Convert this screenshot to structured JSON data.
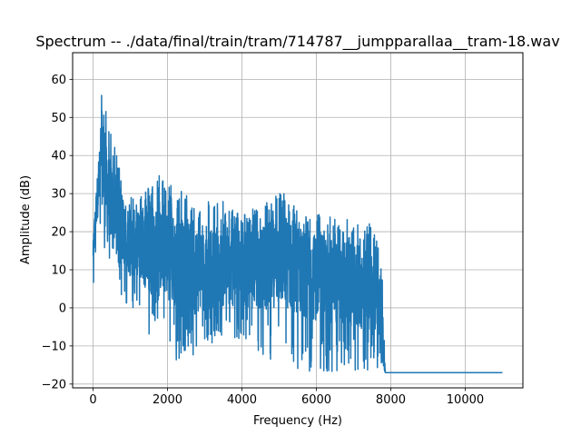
{
  "chart_data": {
    "type": "line",
    "title": "Spectrum -- ./data/final/train/tram/714787__jumpparallaa__tram-18.wav",
    "xlabel": "Frequency (Hz)",
    "ylabel": "Amplitude (dB)",
    "xlim": [
      -550,
      11550
    ],
    "ylim": [
      -21,
      67
    ],
    "xticks": [
      0,
      2000,
      4000,
      6000,
      8000,
      10000
    ],
    "xtick_labels": [
      "0",
      "2000",
      "4000",
      "6000",
      "8000",
      "10000"
    ],
    "yticks": [
      -20,
      -10,
      0,
      10,
      20,
      30,
      40,
      50,
      60
    ],
    "ytick_labels": [
      "−20",
      "−10",
      "0",
      "10",
      "20",
      "30",
      "40",
      "50",
      "60"
    ],
    "grid": true,
    "line_color": "#1f77b4",
    "series": [
      {
        "envelope": {
          "x": [
            0,
            100,
            200,
            230,
            300,
            400,
            500,
            600,
            700,
            800,
            1000,
            1200,
            1500,
            1800,
            2000,
            2300,
            2600,
            3000,
            3500,
            4000,
            4500,
            5000,
            5100,
            5500,
            6000,
            6500,
            7000,
            7200,
            7500,
            7700,
            7800,
            7850,
            7900,
            11000
          ],
          "upper": [
            17,
            35,
            45,
            63,
            52,
            53,
            47,
            41,
            38,
            32,
            30,
            31,
            32,
            36,
            33,
            32,
            29,
            29,
            28,
            25,
            27,
            31,
            31,
            26,
            25,
            24,
            23,
            23,
            22,
            16,
            5,
            -17,
            -17,
            -17
          ],
          "lower": [
            5,
            15,
            20,
            18,
            15,
            14,
            10,
            8,
            0,
            2,
            -2,
            0,
            -10,
            -3,
            -8,
            -17,
            -15,
            -10,
            -8,
            -10,
            -12,
            -15,
            -12,
            -16,
            -17,
            -17,
            -17,
            -17,
            -17,
            -17,
            -17,
            -17,
            -17,
            -17
          ],
          "typical": [
            15,
            28,
            35,
            40,
            35,
            30,
            27,
            25,
            20,
            20,
            17,
            17,
            15,
            15,
            14,
            11,
            10,
            10,
            10,
            10,
            10,
            13,
            12,
            10,
            8,
            7,
            6,
            5,
            4,
            0,
            -10,
            -17,
            -17,
            -17
          ]
        },
        "flat_level_after": {
          "x_start": 7900,
          "x_end": 11000,
          "value": -17
        }
      }
    ]
  }
}
